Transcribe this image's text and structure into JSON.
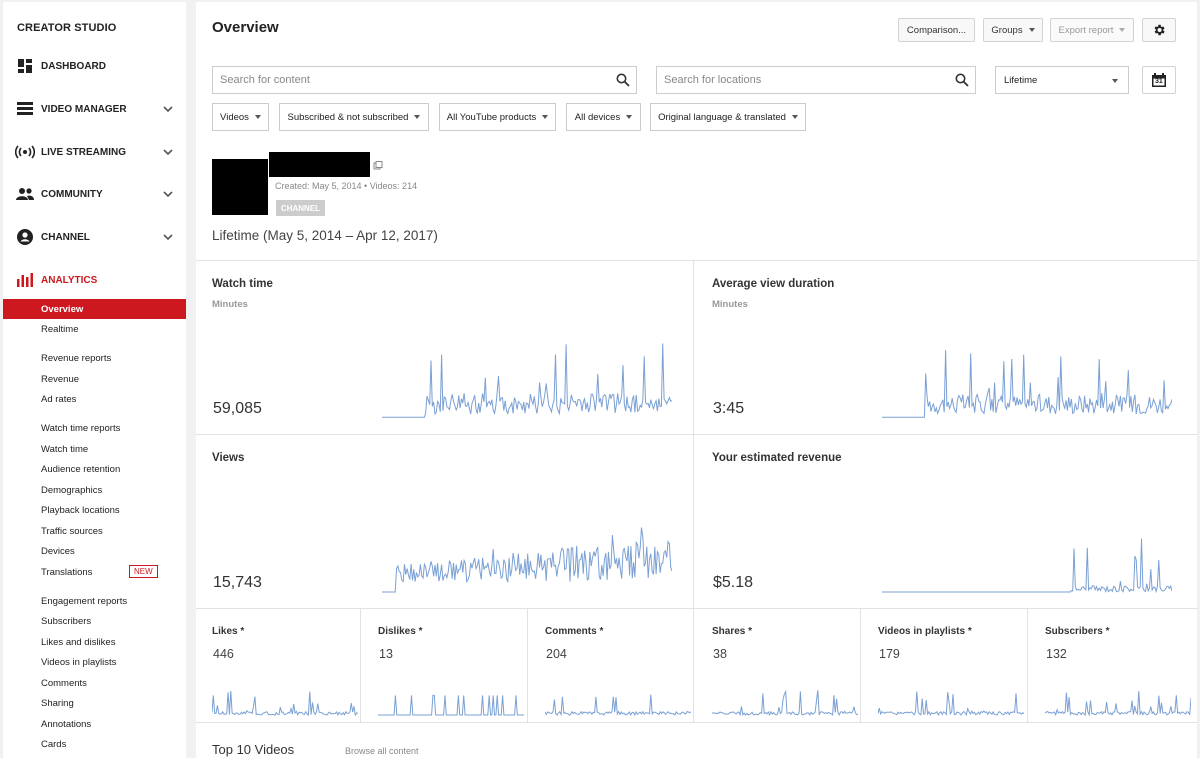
{
  "sidebar": {
    "brand": "CREATOR STUDIO",
    "nav": [
      {
        "label": "DASHBOARD",
        "icon": "dashboard-icon"
      },
      {
        "label": "VIDEO MANAGER",
        "icon": "video-manager-icon"
      },
      {
        "label": "LIVE STREAMING",
        "icon": "live-streaming-icon"
      },
      {
        "label": "COMMUNITY",
        "icon": "community-icon"
      },
      {
        "label": "CHANNEL",
        "icon": "channel-icon"
      },
      {
        "label": "ANALYTICS",
        "icon": "analytics-icon"
      }
    ],
    "analytics_items": [
      "Overview",
      "Realtime",
      "Revenue reports",
      "Revenue",
      "Ad rates",
      "Watch time reports",
      "Watch time",
      "Audience retention",
      "Demographics",
      "Playback locations",
      "Traffic sources",
      "Devices",
      "Translations",
      "Engagement reports",
      "Subscribers",
      "Likes and dislikes",
      "Videos in playlists",
      "Comments",
      "Sharing",
      "Annotations",
      "Cards"
    ],
    "new_badge": "NEW",
    "accent": "#cc181e"
  },
  "header": {
    "title": "Overview",
    "comparison": "Comparison...",
    "groups": "Groups",
    "export": "Export report"
  },
  "search": {
    "content_placeholder": "Search for content",
    "locations_placeholder": "Search for locations",
    "period": "Lifetime",
    "calendar_day": "31"
  },
  "filters": [
    "Videos",
    "Subscribed & not subscribed",
    "All YouTube products",
    "All devices",
    "Original language & translated"
  ],
  "channel": {
    "meta": "Created: May 5, 2014  •  Videos: 214",
    "badge": "CHANNEL",
    "range": "Lifetime (May 5, 2014 – Apr 12, 2017)"
  },
  "metrics": {
    "watch_time": {
      "title": "Watch time",
      "unit": "Minutes",
      "value": "59,085"
    },
    "avg_view_duration": {
      "title": "Average view duration",
      "unit": "Minutes",
      "value": "3:45"
    },
    "views": {
      "title": "Views",
      "value": "15,743"
    },
    "revenue": {
      "title": "Your estimated revenue",
      "value": "$5.18"
    }
  },
  "engagement": [
    {
      "title": "Likes *",
      "value": "446"
    },
    {
      "title": "Dislikes *",
      "value": "13"
    },
    {
      "title": "Comments *",
      "value": "204"
    },
    {
      "title": "Shares *",
      "value": "38"
    },
    {
      "title": "Videos in playlists *",
      "value": "179"
    },
    {
      "title": "Subscribers *",
      "value": "132"
    }
  ],
  "top10": {
    "title": "Top 10 Videos",
    "browse": "Browse all content"
  },
  "colors": {
    "spark": "#7aa0d4",
    "spark_fill": "#9cb8e0"
  }
}
